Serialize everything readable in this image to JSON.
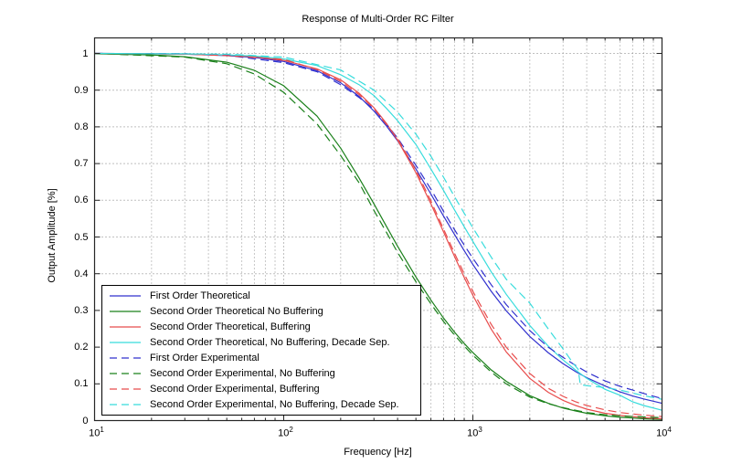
{
  "figure": {
    "title": "Response of Multi-Order RC Filter",
    "xlabel": "Frequency [Hz]",
    "ylabel": "Output Amplitude [%]",
    "background_color": "#ffffff",
    "axis_color": "#262626",
    "grid_color": "#808080",
    "minor_grid_color": "#909090"
  },
  "axes": {
    "x_scale": "log",
    "xlim": [
      10,
      10000
    ],
    "ylim": [
      0,
      1.042
    ],
    "x_tick_exponents": [
      "1",
      "2",
      "3",
      "4"
    ],
    "x_tick_base": "10",
    "y_ticks": [
      0,
      0.1,
      0.2,
      0.3,
      0.4,
      0.5,
      0.6,
      0.7,
      0.8,
      0.9,
      1
    ],
    "y_tick_labels": [
      "0",
      "0.1",
      "0.2",
      "0.3",
      "0.4",
      "0.5",
      "0.6",
      "0.7",
      "0.8",
      "0.9",
      "1"
    ],
    "grid": "on",
    "minor_grid": "on"
  },
  "legend": {
    "position": "southwest",
    "border_color": "#000000"
  },
  "chart_data": {
    "type": "line",
    "x_axis_label": "Frequency [Hz]",
    "y_axis_label": "Output Amplitude [%]",
    "title": "Response of Multi-Order RC Filter",
    "xlim": [
      10,
      10000
    ],
    "ylim": [
      0,
      1.042
    ],
    "x_scale": "log",
    "legend_position": "southwest",
    "series": [
      {
        "label": "First Order Theoretical",
        "color": "#3030CE",
        "style": "solid",
        "points": [
          [
            10,
            1.0
          ],
          [
            20,
            0.999
          ],
          [
            30,
            0.998
          ],
          [
            50,
            0.994
          ],
          [
            70,
            0.989
          ],
          [
            100,
            0.978
          ],
          [
            150,
            0.953
          ],
          [
            200,
            0.92
          ],
          [
            250,
            0.883
          ],
          [
            300,
            0.843
          ],
          [
            350,
            0.802
          ],
          [
            400,
            0.762
          ],
          [
            500,
            0.685
          ],
          [
            600,
            0.617
          ],
          [
            700,
            0.557
          ],
          [
            800,
            0.507
          ],
          [
            900,
            0.463
          ],
          [
            1000,
            0.425
          ],
          [
            1250,
            0.352
          ],
          [
            1500,
            0.299
          ],
          [
            2000,
            0.229
          ],
          [
            2500,
            0.185
          ],
          [
            3000,
            0.155
          ],
          [
            3500,
            0.133
          ],
          [
            4000,
            0.117
          ],
          [
            5000,
            0.094
          ],
          [
            6000,
            0.078
          ],
          [
            7000,
            0.067
          ],
          [
            8000,
            0.059
          ],
          [
            10000,
            0.047
          ]
        ]
      },
      {
        "label": "Second Order Theoretical No Buffering",
        "color": "#1A801A",
        "style": "solid",
        "points": [
          [
            10,
            0.999
          ],
          [
            20,
            0.996
          ],
          [
            30,
            0.991
          ],
          [
            50,
            0.976
          ],
          [
            70,
            0.954
          ],
          [
            100,
            0.912
          ],
          [
            150,
            0.829
          ],
          [
            200,
            0.742
          ],
          [
            250,
            0.661
          ],
          [
            300,
            0.59
          ],
          [
            350,
            0.528
          ],
          [
            400,
            0.475
          ],
          [
            500,
            0.391
          ],
          [
            600,
            0.328
          ],
          [
            700,
            0.279
          ],
          [
            800,
            0.241
          ],
          [
            900,
            0.21
          ],
          [
            1000,
            0.185
          ],
          [
            1250,
            0.138
          ],
          [
            1500,
            0.107
          ],
          [
            2000,
            0.068
          ],
          [
            2500,
            0.047
          ],
          [
            3000,
            0.034
          ],
          [
            3500,
            0.026
          ],
          [
            4000,
            0.02
          ],
          [
            5000,
            0.013
          ],
          [
            6000,
            0.009
          ],
          [
            7000,
            0.007
          ],
          [
            8000,
            0.005
          ],
          [
            10000,
            0.003
          ]
        ]
      },
      {
        "label": "Second Order Theoretical, Buffering",
        "color": "#E84C4C",
        "style": "solid",
        "points": [
          [
            10,
            1.0
          ],
          [
            20,
            0.999
          ],
          [
            30,
            0.998
          ],
          [
            50,
            0.995
          ],
          [
            70,
            0.991
          ],
          [
            100,
            0.981
          ],
          [
            150,
            0.958
          ],
          [
            200,
            0.928
          ],
          [
            250,
            0.892
          ],
          [
            300,
            0.852
          ],
          [
            350,
            0.809
          ],
          [
            400,
            0.764
          ],
          [
            500,
            0.675
          ],
          [
            600,
            0.59
          ],
          [
            700,
            0.514
          ],
          [
            800,
            0.447
          ],
          [
            900,
            0.39
          ],
          [
            1000,
            0.341
          ],
          [
            1250,
            0.249
          ],
          [
            1500,
            0.187
          ],
          [
            2000,
            0.115
          ],
          [
            2500,
            0.077
          ],
          [
            3000,
            0.055
          ],
          [
            3500,
            0.041
          ],
          [
            4000,
            0.031
          ],
          [
            5000,
            0.02
          ],
          [
            6000,
            0.014
          ],
          [
            7000,
            0.011
          ],
          [
            8000,
            0.008
          ],
          [
            10000,
            0.005
          ]
        ]
      },
      {
        "label": "Second Order Theoretical, No Buffering, Decade Sep.",
        "color": "#38DCDC",
        "style": "solid",
        "points": [
          [
            10,
            1.0
          ],
          [
            20,
            0.999
          ],
          [
            30,
            0.999
          ],
          [
            50,
            0.996
          ],
          [
            70,
            0.993
          ],
          [
            100,
            0.985
          ],
          [
            150,
            0.967
          ],
          [
            200,
            0.942
          ],
          [
            250,
            0.915
          ],
          [
            300,
            0.885
          ],
          [
            350,
            0.85
          ],
          [
            400,
            0.817
          ],
          [
            500,
            0.752
          ],
          [
            600,
            0.685
          ],
          [
            700,
            0.627
          ],
          [
            800,
            0.574
          ],
          [
            900,
            0.528
          ],
          [
            1000,
            0.488
          ],
          [
            1250,
            0.405
          ],
          [
            1500,
            0.344
          ],
          [
            2000,
            0.259
          ],
          [
            2500,
            0.203
          ],
          [
            3000,
            0.165
          ],
          [
            3500,
            0.137
          ],
          [
            4000,
            0.115
          ],
          [
            5000,
            0.085
          ],
          [
            6000,
            0.069
          ],
          [
            7000,
            0.051
          ],
          [
            8000,
            0.041
          ],
          [
            10000,
            0.028
          ]
        ]
      },
      {
        "label": "First Order Experimental",
        "color": "#3030CE",
        "style": "dashed",
        "points": [
          [
            10,
            1.0
          ],
          [
            30,
            0.999
          ],
          [
            50,
            0.995
          ],
          [
            100,
            0.975
          ],
          [
            150,
            0.95
          ],
          [
            200,
            0.915
          ],
          [
            250,
            0.88
          ],
          [
            300,
            0.848
          ],
          [
            400,
            0.77
          ],
          [
            500,
            0.695
          ],
          [
            600,
            0.63
          ],
          [
            700,
            0.57
          ],
          [
            800,
            0.52
          ],
          [
            900,
            0.478
          ],
          [
            1000,
            0.442
          ],
          [
            1250,
            0.37
          ],
          [
            1500,
            0.316
          ],
          [
            2000,
            0.245
          ],
          [
            2500,
            0.2
          ],
          [
            3000,
            0.172
          ],
          [
            3500,
            0.15
          ],
          [
            4000,
            0.132
          ],
          [
            5000,
            0.108
          ],
          [
            6000,
            0.093
          ],
          [
            7000,
            0.083
          ],
          [
            8000,
            0.074
          ],
          [
            10000,
            0.06
          ]
        ]
      },
      {
        "label": "Second Order Experimental, No Buffering",
        "color": "#1A801A",
        "style": "dashed",
        "points": [
          [
            10,
            1.0
          ],
          [
            30,
            0.99
          ],
          [
            50,
            0.972
          ],
          [
            70,
            0.944
          ],
          [
            100,
            0.894
          ],
          [
            150,
            0.808
          ],
          [
            200,
            0.722
          ],
          [
            250,
            0.648
          ],
          [
            300,
            0.572
          ],
          [
            350,
            0.512
          ],
          [
            400,
            0.458
          ],
          [
            500,
            0.378
          ],
          [
            600,
            0.318
          ],
          [
            700,
            0.27
          ],
          [
            800,
            0.233
          ],
          [
            900,
            0.203
          ],
          [
            1000,
            0.178
          ],
          [
            1250,
            0.132
          ],
          [
            1500,
            0.1
          ],
          [
            2000,
            0.064
          ],
          [
            2500,
            0.046
          ],
          [
            3000,
            0.035
          ],
          [
            4000,
            0.022
          ],
          [
            5000,
            0.016
          ],
          [
            6000,
            0.013
          ],
          [
            7000,
            0.011
          ],
          [
            8000,
            0.01
          ],
          [
            10000,
            0.008
          ]
        ]
      },
      {
        "label": "Second Order Experimental, Buffering",
        "color": "#E84C4C",
        "style": "dashed",
        "points": [
          [
            10,
            1.0
          ],
          [
            30,
            0.998
          ],
          [
            50,
            0.994
          ],
          [
            100,
            0.984
          ],
          [
            150,
            0.956
          ],
          [
            200,
            0.924
          ],
          [
            250,
            0.888
          ],
          [
            300,
            0.85
          ],
          [
            400,
            0.768
          ],
          [
            500,
            0.682
          ],
          [
            600,
            0.598
          ],
          [
            700,
            0.522
          ],
          [
            800,
            0.456
          ],
          [
            900,
            0.4
          ],
          [
            1000,
            0.352
          ],
          [
            1250,
            0.262
          ],
          [
            1500,
            0.2
          ],
          [
            2000,
            0.128
          ],
          [
            2500,
            0.088
          ],
          [
            3000,
            0.066
          ],
          [
            3500,
            0.051
          ],
          [
            4000,
            0.041
          ],
          [
            5000,
            0.029
          ],
          [
            6000,
            0.022
          ],
          [
            7000,
            0.018
          ],
          [
            8000,
            0.015
          ],
          [
            10000,
            0.011
          ]
        ]
      },
      {
        "label": "Second Order Experimental, No Buffering, Decade Sep.",
        "color": "#38DCDC",
        "style": "dashed",
        "points": [
          [
            10,
            1.0
          ],
          [
            50,
            0.998
          ],
          [
            100,
            0.99
          ],
          [
            200,
            0.955
          ],
          [
            300,
            0.9
          ],
          [
            400,
            0.84
          ],
          [
            500,
            0.78
          ],
          [
            600,
            0.72
          ],
          [
            700,
            0.663
          ],
          [
            800,
            0.61
          ],
          [
            900,
            0.565
          ],
          [
            1000,
            0.525
          ],
          [
            1250,
            0.445
          ],
          [
            1500,
            0.385
          ],
          [
            2000,
            0.32
          ],
          [
            2500,
            0.25
          ],
          [
            3000,
            0.195
          ],
          [
            3400,
            0.155
          ],
          [
            3600,
            0.14
          ],
          [
            3700,
            0.098
          ],
          [
            4000,
            0.095
          ],
          [
            5000,
            0.09
          ],
          [
            6000,
            0.083
          ],
          [
            7000,
            0.075
          ],
          [
            8000,
            0.068
          ],
          [
            10000,
            0.058
          ]
        ]
      }
    ]
  }
}
